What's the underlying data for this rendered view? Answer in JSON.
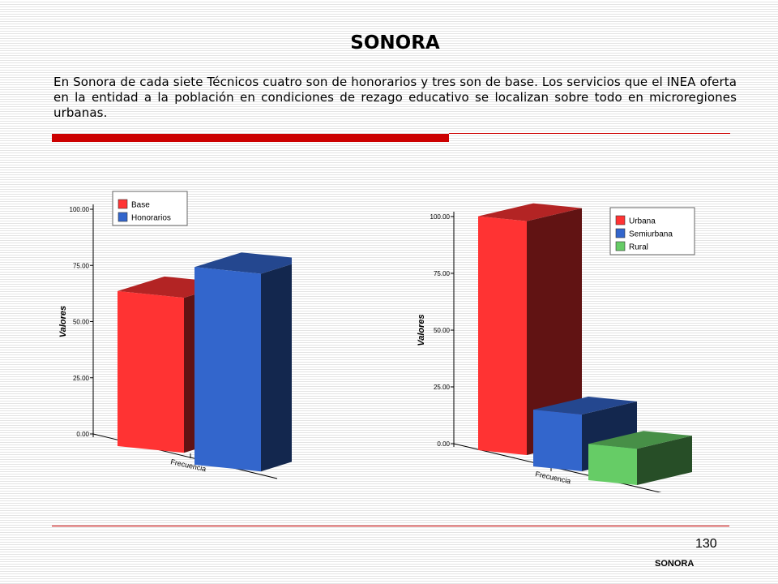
{
  "page": {
    "title": "SONORA",
    "description": "En Sonora de cada siete Técnicos cuatro son de honorarios y tres son de base. Los servicios que el INEA oferta en la entidad a la población en condiciones de rezago educativo se localizan sobre todo en microregiones urbanas.",
    "page_number": "130",
    "footer_label": "SONORA"
  },
  "colors": {
    "accent_red": "#cc0000"
  },
  "chart_data": [
    {
      "type": "bar",
      "ylabel": "Valores",
      "xlabel": "Frecuencia",
      "ylim": [
        0,
        100
      ],
      "yticks": [
        "0.00",
        "25.00",
        "50.00",
        "75.00",
        "100.00"
      ],
      "grid": false,
      "legend_position": "top",
      "series": [
        {
          "name": "Base",
          "values": [
            69
          ],
          "color": "#ff3333"
        },
        {
          "name": "Honorarios",
          "values": [
            88
          ],
          "color": "#3366cc"
        }
      ]
    },
    {
      "type": "bar",
      "ylabel": "Valores",
      "xlabel": "Frecuencia",
      "ylim": [
        0,
        100
      ],
      "yticks": [
        "0.00",
        "25.00",
        "50.00",
        "75.00",
        "100.00"
      ],
      "grid": false,
      "legend_position": "top-right",
      "series": [
        {
          "name": "Urbana",
          "values": [
            103
          ],
          "color": "#ff3333"
        },
        {
          "name": "Semiurbana",
          "values": [
            25
          ],
          "color": "#3366cc"
        },
        {
          "name": "Rural",
          "values": [
            16
          ],
          "color": "#66cc66"
        }
      ]
    }
  ]
}
